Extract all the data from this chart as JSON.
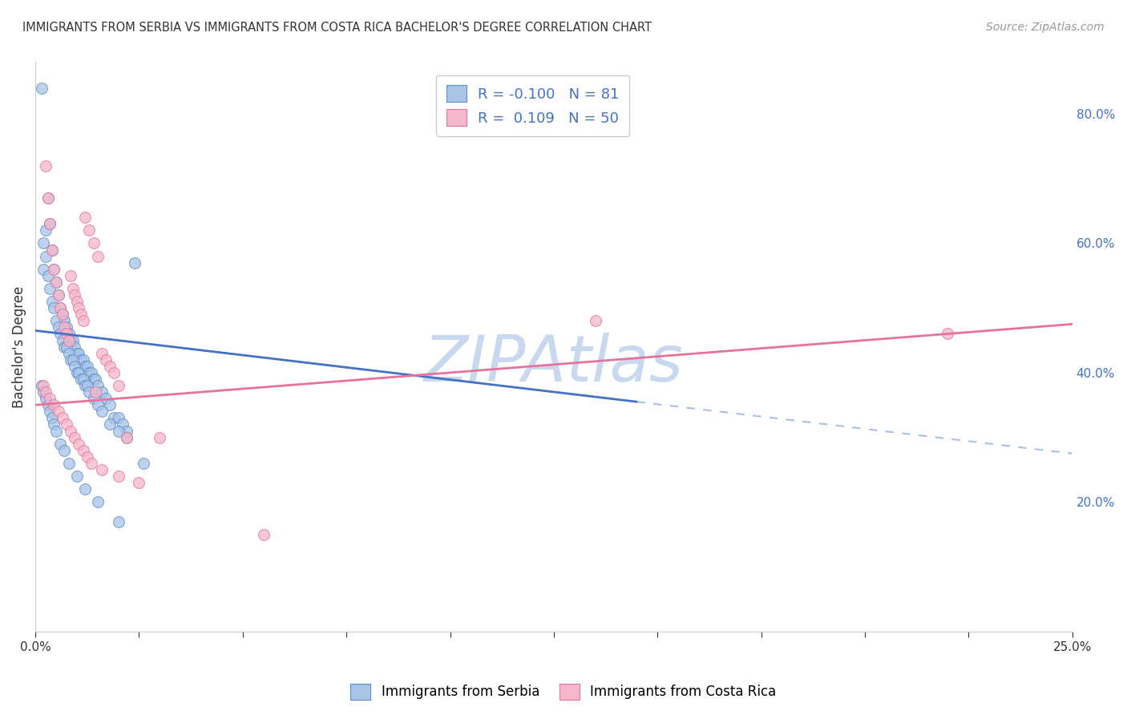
{
  "title": "IMMIGRANTS FROM SERBIA VS IMMIGRANTS FROM COSTA RICA BACHELOR'S DEGREE CORRELATION CHART",
  "source": "Source: ZipAtlas.com",
  "ylabel": "Bachelor's Degree",
  "xlim": [
    0.0,
    25.0
  ],
  "ylim": [
    0.0,
    88.0
  ],
  "yticks_right": [
    20.0,
    40.0,
    60.0,
    80.0
  ],
  "serbia_color": "#aac4e8",
  "serbia_edge_color": "#5b8fc9",
  "costa_rica_color": "#f5b8ca",
  "costa_rica_edge_color": "#e8729a",
  "serbia_R": -0.1,
  "serbia_N": 81,
  "costa_rica_R": 0.109,
  "costa_rica_N": 50,
  "watermark": "ZIPAtlas",
  "serbia_scatter_x": [
    0.15,
    0.2,
    0.25,
    0.3,
    0.35,
    0.4,
    0.45,
    0.5,
    0.55,
    0.6,
    0.65,
    0.7,
    0.75,
    0.8,
    0.85,
    0.9,
    0.95,
    1.0,
    1.05,
    1.1,
    1.15,
    1.2,
    1.25,
    1.3,
    1.35,
    1.4,
    1.45,
    1.5,
    1.6,
    1.7,
    1.8,
    1.9,
    2.0,
    2.1,
    2.2,
    2.4,
    0.2,
    0.25,
    0.3,
    0.35,
    0.4,
    0.45,
    0.5,
    0.55,
    0.6,
    0.65,
    0.7,
    0.75,
    0.8,
    0.85,
    0.9,
    0.95,
    1.0,
    1.05,
    1.1,
    1.15,
    1.2,
    1.25,
    1.3,
    1.4,
    1.5,
    1.6,
    1.8,
    2.0,
    2.2,
    2.6,
    0.15,
    0.2,
    0.25,
    0.3,
    0.35,
    0.4,
    0.45,
    0.5,
    0.6,
    0.7,
    0.8,
    1.0,
    1.2,
    1.5,
    2.0
  ],
  "serbia_scatter_y": [
    84,
    56,
    62,
    67,
    63,
    59,
    56,
    54,
    52,
    50,
    49,
    48,
    47,
    46,
    45,
    45,
    44,
    43,
    43,
    42,
    42,
    41,
    41,
    40,
    40,
    39,
    39,
    38,
    37,
    36,
    35,
    33,
    33,
    32,
    31,
    57,
    60,
    58,
    55,
    53,
    51,
    50,
    48,
    47,
    46,
    45,
    44,
    44,
    43,
    42,
    42,
    41,
    40,
    40,
    39,
    39,
    38,
    38,
    37,
    36,
    35,
    34,
    32,
    31,
    30,
    26,
    38,
    37,
    36,
    35,
    34,
    33,
    32,
    31,
    29,
    28,
    26,
    24,
    22,
    20,
    17
  ],
  "costa_rica_scatter_x": [
    0.2,
    0.25,
    0.3,
    0.35,
    0.4,
    0.45,
    0.5,
    0.55,
    0.6,
    0.65,
    0.7,
    0.75,
    0.8,
    0.85,
    0.9,
    0.95,
    1.0,
    1.05,
    1.1,
    1.15,
    1.2,
    1.3,
    1.4,
    1.5,
    1.6,
    1.7,
    1.8,
    1.9,
    2.0,
    2.2,
    0.25,
    0.35,
    0.45,
    0.55,
    0.65,
    0.75,
    0.85,
    0.95,
    1.05,
    1.15,
    1.25,
    1.35,
    1.45,
    1.6,
    2.0,
    2.5,
    3.0,
    5.5,
    13.5,
    22.0
  ],
  "costa_rica_scatter_y": [
    38,
    72,
    67,
    63,
    59,
    56,
    54,
    52,
    50,
    49,
    47,
    46,
    45,
    55,
    53,
    52,
    51,
    50,
    49,
    48,
    64,
    62,
    60,
    58,
    43,
    42,
    41,
    40,
    38,
    30,
    37,
    36,
    35,
    34,
    33,
    32,
    31,
    30,
    29,
    28,
    27,
    26,
    37,
    25,
    24,
    23,
    30,
    15,
    48,
    46
  ],
  "serbia_line_x0": 0.0,
  "serbia_line_y0": 46.5,
  "serbia_line_x1": 14.5,
  "serbia_line_y1": 35.5,
  "serbia_dash_x0": 14.5,
  "serbia_dash_y0": 35.5,
  "serbia_dash_x1": 25.0,
  "serbia_dash_y1": 27.5,
  "costa_rica_line_x0": 0.0,
  "costa_rica_line_y0": 35.0,
  "costa_rica_line_x1": 25.0,
  "costa_rica_line_y1": 47.5,
  "background_color": "#ffffff",
  "grid_color": "#dddddd",
  "title_color": "#333333",
  "axis_color": "#cccccc",
  "right_tick_color": "#4472c4",
  "serbia_line_color": "#4472c4",
  "costa_rica_line_color": "#e8729a",
  "watermark_color": "#c8d8ee",
  "scatter_size": 100
}
